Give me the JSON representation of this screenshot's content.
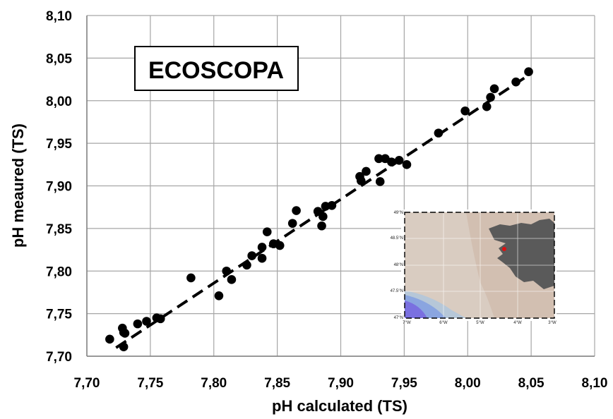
{
  "chart_data": {
    "type": "scatter",
    "title": "",
    "xlabel": "pH calculated (TS)",
    "ylabel": "pH meaured (TS)",
    "xlim": [
      7.7,
      8.1
    ],
    "ylim": [
      7.7,
      8.1
    ],
    "x_ticks": [
      "7,70",
      "7,75",
      "7,80",
      "7,85",
      "7,90",
      "7,95",
      "8,00",
      "8,05",
      "8,10"
    ],
    "y_ticks": [
      "7,70",
      "7,75",
      "7,80",
      "7,85",
      "7,90",
      "7,95",
      "8,00",
      "8,05",
      "8,10"
    ],
    "grid": true,
    "annotation": "ECOSCOPA",
    "series": [
      {
        "points": [
          [
            7.718,
            7.72
          ],
          [
            7.728,
            7.733
          ],
          [
            7.729,
            7.728
          ],
          [
            7.73,
            7.727
          ],
          [
            7.729,
            7.711
          ],
          [
            7.74,
            7.738
          ],
          [
            7.747,
            7.741
          ],
          [
            7.755,
            7.745
          ],
          [
            7.758,
            7.744
          ],
          [
            7.782,
            7.792
          ],
          [
            7.804,
            7.771
          ],
          [
            7.81,
            7.8
          ],
          [
            7.814,
            7.79
          ],
          [
            7.826,
            7.807
          ],
          [
            7.83,
            7.818
          ],
          [
            7.838,
            7.815
          ],
          [
            7.838,
            7.828
          ],
          [
            7.842,
            7.846
          ],
          [
            7.847,
            7.832
          ],
          [
            7.852,
            7.83
          ],
          [
            7.862,
            7.856
          ],
          [
            7.865,
            7.871
          ],
          [
            7.882,
            7.87
          ],
          [
            7.885,
            7.853
          ],
          [
            7.886,
            7.864
          ],
          [
            7.888,
            7.876
          ],
          [
            7.893,
            7.877
          ],
          [
            7.915,
            7.911
          ],
          [
            7.916,
            7.906
          ],
          [
            7.92,
            7.917
          ],
          [
            7.93,
            7.932
          ],
          [
            7.931,
            7.905
          ],
          [
            7.935,
            7.932
          ],
          [
            7.94,
            7.928
          ],
          [
            7.946,
            7.93
          ],
          [
            7.952,
            7.925
          ],
          [
            7.977,
            7.962
          ],
          [
            7.998,
            7.988
          ],
          [
            8.015,
            7.993
          ],
          [
            8.018,
            8.004
          ],
          [
            8.021,
            8.014
          ],
          [
            8.038,
            8.022
          ],
          [
            8.048,
            8.034
          ]
        ]
      }
    ],
    "trendline": {
      "style": "dashed",
      "x": [
        7.723,
        8.048
      ],
      "y": [
        7.71,
        8.03
      ]
    },
    "inset_map": {
      "x_ticks": [
        "7°W",
        "6°W",
        "5°W",
        "4°W",
        "3°W"
      ],
      "y_ticks": [
        "49°N",
        "48.5°N",
        "48°N",
        "47.5°N",
        "47°N"
      ],
      "marker_color": "#e01010"
    }
  }
}
